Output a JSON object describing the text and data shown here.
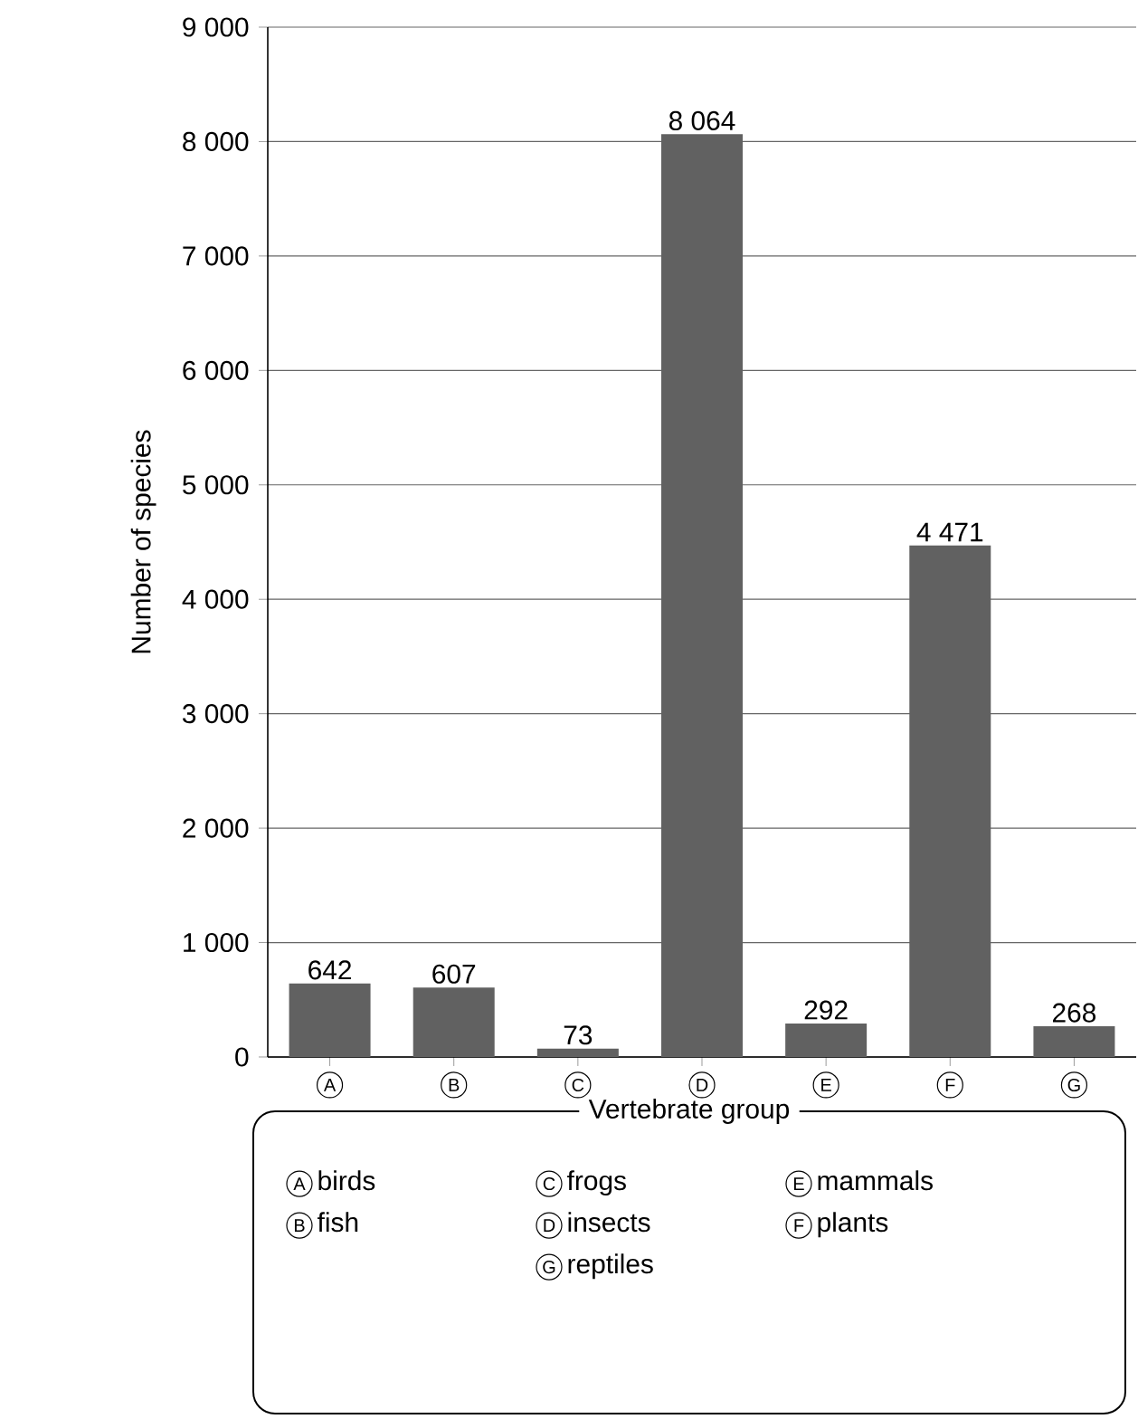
{
  "chart_data": {
    "type": "bar",
    "ylabel": "Number of species",
    "xlabel": "Vertebrate group",
    "categories": [
      "A",
      "B",
      "C",
      "D",
      "E",
      "F",
      "G"
    ],
    "values": [
      642,
      607,
      73,
      8064,
      292,
      4471,
      268
    ],
    "value_labels": [
      "642",
      "607",
      "73",
      "8 064",
      "292",
      "4 471",
      "268"
    ],
    "color": "#616161",
    "ylim": [
      0,
      9000
    ],
    "yticks": [
      {
        "value": 0,
        "label": "0"
      },
      {
        "value": 1000,
        "label": "1 000"
      },
      {
        "value": 2000,
        "label": "2 000"
      },
      {
        "value": 3000,
        "label": "3 000"
      },
      {
        "value": 4000,
        "label": "4 000"
      },
      {
        "value": 5000,
        "label": "5 000"
      },
      {
        "value": 6000,
        "label": "6 000"
      },
      {
        "value": 7000,
        "label": "7 000"
      },
      {
        "value": 8000,
        "label": "8 000"
      },
      {
        "value": 9000,
        "label": "9 000"
      }
    ],
    "grid": "y",
    "annotations": [
      "birds",
      "fish",
      "frogs",
      "insects",
      "mammals",
      "plants",
      "reptiles"
    ]
  }
}
